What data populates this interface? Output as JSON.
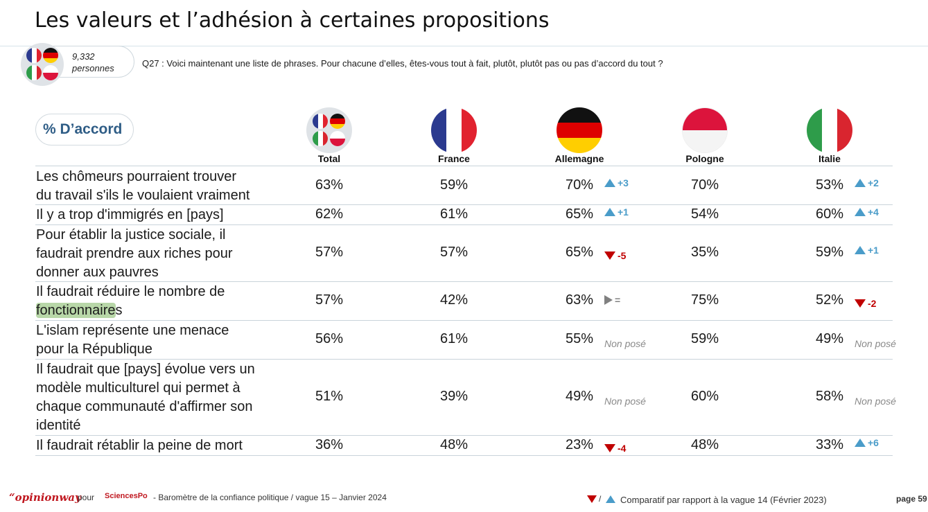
{
  "title": "Les valeurs et l’adhésion à certaines propositions",
  "sample": {
    "count": "9,332",
    "unit": "personnes"
  },
  "question": "Q27 : Voici maintenant une liste de phrases. Pour chacune d’elles, êtes-vous tout à fait, plutôt, plutôt pas ou pas d’accord du tout ?",
  "accord_label": "% D’accord",
  "columns": [
    "Total",
    "France",
    "Allemagne",
    "Pologne",
    "Italie"
  ],
  "rows": [
    {
      "label": [
        "Les chômeurs pourraient trouver",
        "du travail s'ils le voulaient vraiment"
      ],
      "values": [
        "63%",
        "59%",
        "70%",
        "70%",
        "53%"
      ],
      "de_delta": {
        "dir": "up",
        "text": "+3"
      },
      "it_delta": {
        "dir": "up",
        "text": "+2"
      }
    },
    {
      "label": [
        "Il y a trop d'immigrés en [pays]"
      ],
      "values": [
        "62%",
        "61%",
        "65%",
        "54%",
        "60%"
      ],
      "de_delta": {
        "dir": "up",
        "text": "+1"
      },
      "it_delta": {
        "dir": "up",
        "text": "+4"
      }
    },
    {
      "label": [
        "Pour établir la justice sociale, il",
        "faudrait prendre aux riches pour",
        "donner aux pauvres"
      ],
      "values": [
        "57%",
        "57%",
        "65%",
        "35%",
        "59%"
      ],
      "de_delta": {
        "dir": "down",
        "text": "-5"
      },
      "it_delta": {
        "dir": "up",
        "text": "+1"
      }
    },
    {
      "label": [
        "Il faudrait réduire le nombre de",
        "fonctionnaires"
      ],
      "highlight": "fonctionnaire",
      "values": [
        "57%",
        "42%",
        "63%",
        "75%",
        "52%"
      ],
      "de_delta": {
        "dir": "eq",
        "text": "="
      },
      "it_delta": {
        "dir": "down",
        "text": "-2"
      }
    },
    {
      "label": [
        "L'islam représente une menace",
        "pour la République"
      ],
      "values": [
        "56%",
        "61%",
        "55%",
        "59%",
        "49%"
      ],
      "de_delta": {
        "dir": "np",
        "text": "Non posé"
      },
      "it_delta": {
        "dir": "np",
        "text": "Non posé"
      }
    },
    {
      "label": [
        "Il faudrait que [pays] évolue vers un",
        "modèle multiculturel qui permet à",
        "chaque communauté d'affirmer son",
        "identité"
      ],
      "values": [
        "51%",
        "39%",
        "49%",
        "60%",
        "58%"
      ],
      "de_delta": {
        "dir": "np",
        "text": "Non posé"
      },
      "it_delta": {
        "dir": "np",
        "text": "Non posé"
      }
    },
    {
      "label": [
        "Il faudrait rétablir la peine de mort"
      ],
      "values": [
        "36%",
        "48%",
        "23%",
        "48%",
        "33%"
      ],
      "de_delta": {
        "dir": "down",
        "text": "-4"
      },
      "it_delta": {
        "dir": "up",
        "text": "+6"
      }
    }
  ],
  "footer": {
    "brand": "“opinionway",
    "pour": "pour",
    "partner": "SciencesPo",
    "source": "- Baromètre de la confiance politique / vague 15 – Janvier 2024",
    "legend": "Comparatif par rapport à la vague 14 (Février 2023)",
    "legend_sep": "/",
    "page": "page 59"
  },
  "colors": {
    "up": "#4a9cc9",
    "down": "#c00000",
    "accent": "#2f5d86"
  }
}
